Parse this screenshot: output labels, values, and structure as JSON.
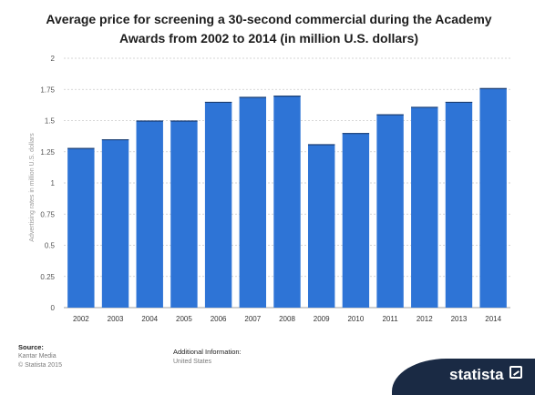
{
  "title": "Average price for screening a 30-second commercial during the Academy Awards from 2002 to 2014 (in million U.S. dollars)",
  "chart_data": {
    "type": "bar",
    "title": "Average price for screening a 30-second commercial during the Academy Awards from 2002 to 2014 (in million U.S. dollars)",
    "xlabel": "",
    "ylabel": "Advertising rates in million U.S. dollars",
    "categories": [
      "2002",
      "2003",
      "2004",
      "2005",
      "2006",
      "2007",
      "2008",
      "2009",
      "2010",
      "2011",
      "2012",
      "2013",
      "2014"
    ],
    "values": [
      1.28,
      1.35,
      1.5,
      1.5,
      1.65,
      1.69,
      1.7,
      1.31,
      1.4,
      1.55,
      1.61,
      1.65,
      1.76
    ],
    "ylim": [
      0,
      2
    ],
    "yticks": [
      "0",
      "0.25",
      "0.5",
      "0.75",
      "1",
      "1.25",
      "1.5",
      "1.75",
      "2"
    ],
    "grid": true,
    "colors": {
      "bar": "#2e74d6",
      "bar_edge": "#1c3f73",
      "grid": "#c9c9c9",
      "axis": "#a0a0a0"
    }
  },
  "footer": {
    "source_label": "Source:",
    "source_lines": [
      "Kantar Media",
      "© Statista 2015"
    ],
    "info_label": "Additional Information:",
    "info_value": "United States"
  },
  "brand": {
    "name": "statista"
  }
}
